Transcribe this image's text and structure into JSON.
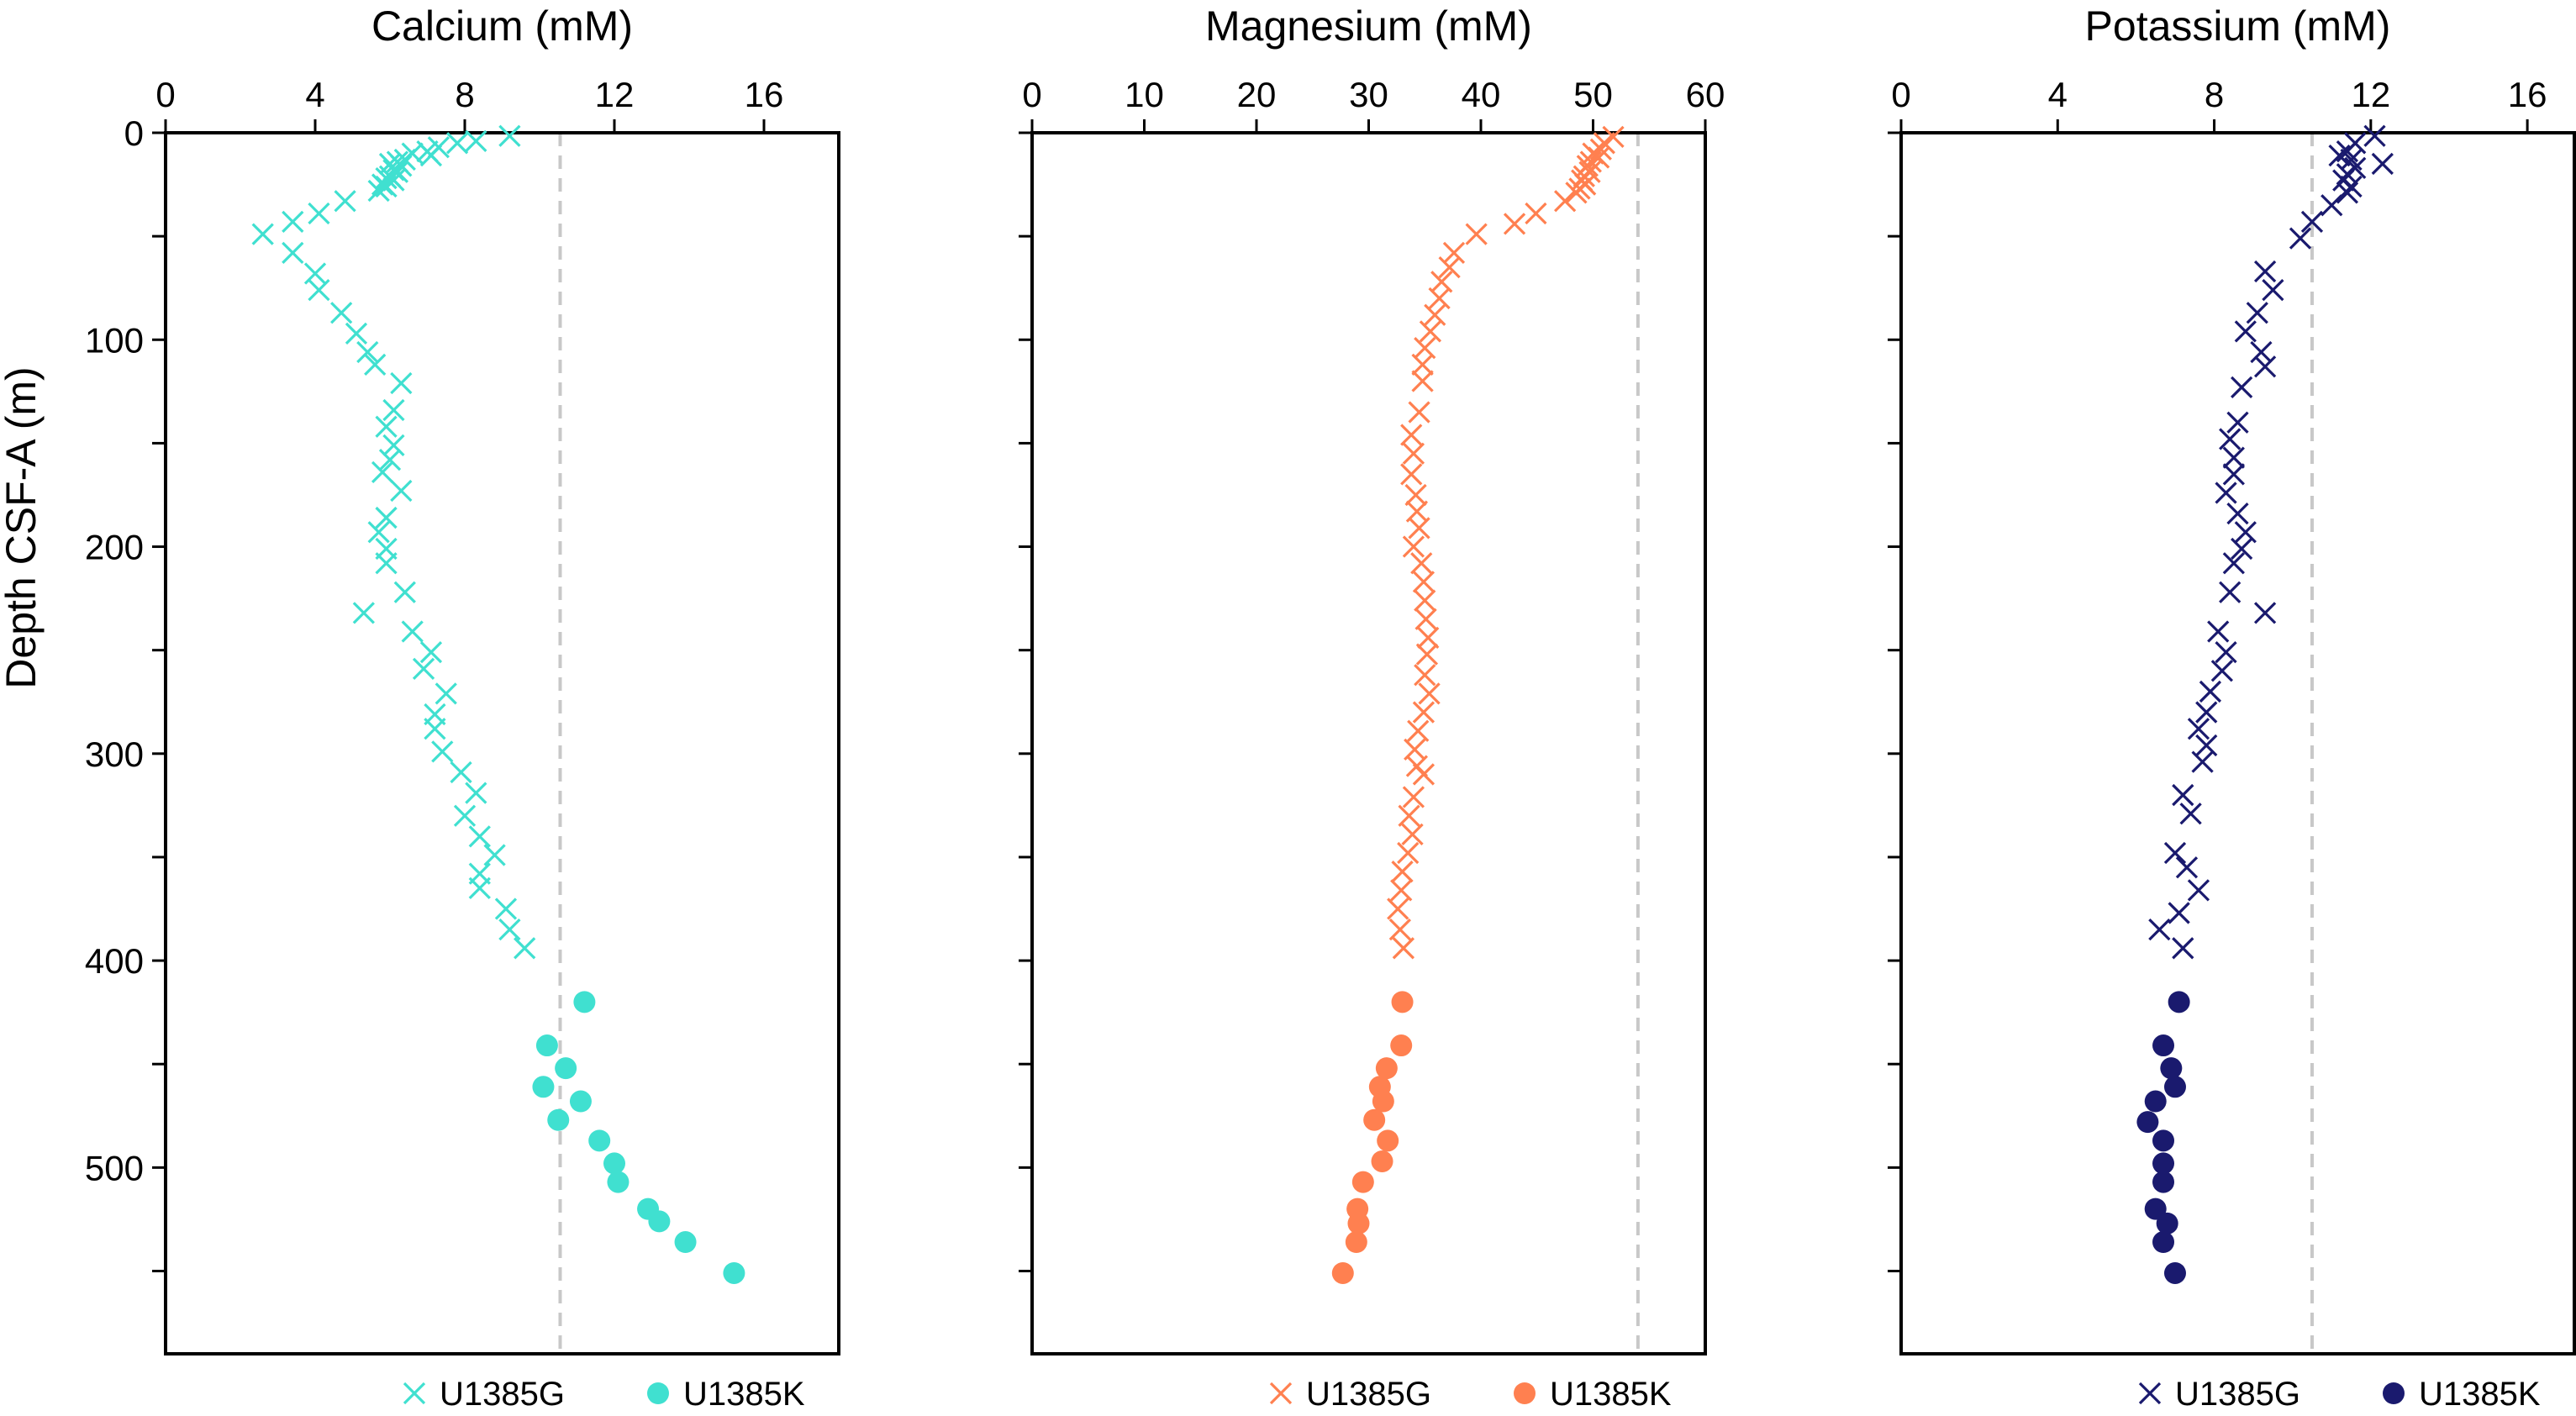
{
  "ylabel": "Depth CSF-A (m)",
  "legend_labels": [
    "U1385G",
    "U1385K"
  ],
  "chart_data": [
    {
      "type": "scatter",
      "title": "Calcium (mM)",
      "xlim": [
        0,
        18
      ],
      "xticks": [
        0,
        4,
        8,
        12,
        16
      ],
      "ylim": [
        0,
        590
      ],
      "yticks": [
        0,
        100,
        200,
        300,
        400,
        500
      ],
      "y_inverted": true,
      "color": "#40E0D0",
      "reference_line_x": 10.55,
      "series": [
        {
          "name": "U1385G",
          "marker": "x",
          "points": [
            [
              9.2,
              1.5
            ],
            [
              8.3,
              4
            ],
            [
              7.8,
              5
            ],
            [
              7.3,
              7
            ],
            [
              7.0,
              9
            ],
            [
              6.6,
              10
            ],
            [
              7.1,
              11
            ],
            [
              6.4,
              13
            ],
            [
              6.2,
              14
            ],
            [
              6.0,
              15
            ],
            [
              6.3,
              16
            ],
            [
              6.1,
              18
            ],
            [
              6.2,
              19
            ],
            [
              6.0,
              21
            ],
            [
              5.9,
              22
            ],
            [
              6.1,
              23
            ],
            [
              5.8,
              25
            ],
            [
              5.9,
              26
            ],
            [
              5.7,
              28
            ],
            [
              4.8,
              33
            ],
            [
              4.1,
              39
            ],
            [
              3.4,
              43
            ],
            [
              2.6,
              49
            ],
            [
              3.4,
              58
            ],
            [
              4.0,
              68
            ],
            [
              4.1,
              76
            ],
            [
              4.7,
              87
            ],
            [
              5.1,
              97
            ],
            [
              5.4,
              106
            ],
            [
              5.6,
              112
            ],
            [
              6.3,
              121
            ],
            [
              6.1,
              134
            ],
            [
              5.9,
              142
            ],
            [
              6.1,
              151
            ],
            [
              6.0,
              158
            ],
            [
              5.8,
              164
            ],
            [
              6.3,
              173
            ],
            [
              5.9,
              186
            ],
            [
              5.7,
              193
            ],
            [
              5.9,
              201
            ],
            [
              5.9,
              208
            ],
            [
              6.4,
              222
            ],
            [
              5.3,
              232
            ],
            [
              6.6,
              241
            ],
            [
              7.1,
              251
            ],
            [
              6.9,
              259
            ],
            [
              7.5,
              271
            ],
            [
              7.2,
              281
            ],
            [
              7.2,
              288
            ],
            [
              7.4,
              299
            ],
            [
              7.9,
              309
            ],
            [
              8.3,
              319
            ],
            [
              8.0,
              330
            ],
            [
              8.4,
              340
            ],
            [
              8.8,
              349
            ],
            [
              8.4,
              358
            ],
            [
              8.4,
              365
            ],
            [
              9.1,
              375
            ],
            [
              9.2,
              385
            ],
            [
              9.6,
              394
            ]
          ]
        },
        {
          "name": "U1385K",
          "marker": "circle",
          "points": [
            [
              11.2,
              420
            ],
            [
              10.2,
              441
            ],
            [
              10.7,
              452
            ],
            [
              10.1,
              461
            ],
            [
              11.1,
              468
            ],
            [
              10.5,
              477
            ],
            [
              11.6,
              487
            ],
            [
              12.0,
              498
            ],
            [
              12.1,
              507
            ],
            [
              12.9,
              520
            ],
            [
              13.2,
              526
            ],
            [
              13.9,
              536
            ],
            [
              15.2,
              551
            ]
          ]
        }
      ]
    },
    {
      "type": "scatter",
      "title": "Magnesium (mM)",
      "xlim": [
        0,
        60
      ],
      "xticks": [
        0,
        10,
        20,
        30,
        40,
        50,
        60
      ],
      "ylim": [
        0,
        590
      ],
      "yticks": [
        0,
        100,
        200,
        300,
        400,
        500
      ],
      "y_inverted": true,
      "color": "#FF8050",
      "reference_line_x": 54,
      "series": [
        {
          "name": "U1385G",
          "marker": "x",
          "points": [
            [
              51.8,
              2
            ],
            [
              51.0,
              5
            ],
            [
              50.7,
              8
            ],
            [
              50.0,
              10
            ],
            [
              50.5,
              12
            ],
            [
              49.8,
              14
            ],
            [
              49.5,
              16
            ],
            [
              49.7,
              19
            ],
            [
              49.2,
              21
            ],
            [
              49.0,
              23
            ],
            [
              49.3,
              25
            ],
            [
              48.8,
              27
            ],
            [
              48.5,
              29
            ],
            [
              47.5,
              33
            ],
            [
              44.9,
              39
            ],
            [
              43.0,
              44
            ],
            [
              39.6,
              49
            ],
            [
              37.6,
              58
            ],
            [
              37.2,
              65
            ],
            [
              36.5,
              72
            ],
            [
              36.3,
              80
            ],
            [
              35.9,
              88
            ],
            [
              35.5,
              96
            ],
            [
              35.0,
              104
            ],
            [
              34.8,
              112
            ],
            [
              34.8,
              120
            ],
            [
              34.5,
              135
            ],
            [
              33.8,
              146
            ],
            [
              34.0,
              155
            ],
            [
              33.8,
              165
            ],
            [
              34.2,
              175
            ],
            [
              34.3,
              183
            ],
            [
              34.5,
              191
            ],
            [
              34.0,
              200
            ],
            [
              34.7,
              208
            ],
            [
              34.9,
              217
            ],
            [
              35.0,
              226
            ],
            [
              35.1,
              235
            ],
            [
              35.3,
              244
            ],
            [
              35.2,
              252
            ],
            [
              35.0,
              262
            ],
            [
              35.4,
              271
            ],
            [
              34.9,
              280
            ],
            [
              34.4,
              289
            ],
            [
              34.1,
              298
            ],
            [
              34.3,
              306
            ],
            [
              34.9,
              310
            ],
            [
              34.0,
              321
            ],
            [
              33.6,
              330
            ],
            [
              33.9,
              339
            ],
            [
              33.5,
              348
            ],
            [
              33.0,
              357
            ],
            [
              32.9,
              366
            ],
            [
              32.6,
              375
            ],
            [
              32.8,
              385
            ],
            [
              33.1,
              394
            ]
          ]
        },
        {
          "name": "U1385K",
          "marker": "circle",
          "points": [
            [
              33.0,
              420
            ],
            [
              32.9,
              441
            ],
            [
              31.6,
              452
            ],
            [
              31.0,
              461
            ],
            [
              31.3,
              468
            ],
            [
              30.5,
              477
            ],
            [
              31.7,
              487
            ],
            [
              31.2,
              497
            ],
            [
              29.5,
              507
            ],
            [
              29.0,
              520
            ],
            [
              29.1,
              527
            ],
            [
              28.9,
              536
            ],
            [
              27.7,
              551
            ]
          ]
        }
      ]
    },
    {
      "type": "scatter",
      "title": "Potassium (mM)",
      "xlim": [
        0,
        17.2
      ],
      "xticks": [
        0,
        4,
        8,
        12,
        16
      ],
      "ylim": [
        0,
        590
      ],
      "yticks": [
        0,
        100,
        200,
        300,
        400,
        500
      ],
      "y_inverted": true,
      "color": "#1A1A6E",
      "reference_line_x": 10.5,
      "series": [
        {
          "name": "U1385G",
          "marker": "x",
          "points": [
            [
              12.1,
              1.5
            ],
            [
              11.6,
              5
            ],
            [
              11.4,
              9
            ],
            [
              11.2,
              11
            ],
            [
              11.5,
              13
            ],
            [
              12.3,
              15
            ],
            [
              11.6,
              17
            ],
            [
              11.4,
              20
            ],
            [
              11.3,
              23
            ],
            [
              11.5,
              26
            ],
            [
              11.4,
              29
            ],
            [
              11.0,
              35
            ],
            [
              10.5,
              43
            ],
            [
              10.2,
              51
            ],
            [
              9.3,
              67
            ],
            [
              9.5,
              76
            ],
            [
              9.1,
              87
            ],
            [
              8.8,
              96
            ],
            [
              9.2,
              106
            ],
            [
              9.3,
              113
            ],
            [
              8.7,
              123
            ],
            [
              8.6,
              140
            ],
            [
              8.4,
              148
            ],
            [
              8.5,
              157
            ],
            [
              8.5,
              165
            ],
            [
              8.3,
              174
            ],
            [
              8.6,
              184
            ],
            [
              8.8,
              193
            ],
            [
              8.7,
              201
            ],
            [
              8.5,
              208
            ],
            [
              8.4,
              222
            ],
            [
              9.3,
              232
            ],
            [
              8.1,
              241
            ],
            [
              8.3,
              251
            ],
            [
              8.2,
              260
            ],
            [
              7.9,
              270
            ],
            [
              7.8,
              280
            ],
            [
              7.6,
              288
            ],
            [
              7.8,
              296
            ],
            [
              7.7,
              304
            ],
            [
              7.2,
              320
            ],
            [
              7.4,
              329
            ],
            [
              7.0,
              348
            ],
            [
              7.3,
              355
            ],
            [
              7.6,
              366
            ],
            [
              7.1,
              377
            ],
            [
              6.6,
              385
            ],
            [
              7.2,
              394
            ]
          ]
        },
        {
          "name": "U1385K",
          "marker": "circle",
          "points": [
            [
              7.1,
              420
            ],
            [
              6.7,
              441
            ],
            [
              6.9,
              452
            ],
            [
              7.0,
              461
            ],
            [
              6.5,
              468
            ],
            [
              6.3,
              478
            ],
            [
              6.7,
              487
            ],
            [
              6.7,
              498
            ],
            [
              6.7,
              507
            ],
            [
              6.5,
              520
            ],
            [
              6.8,
              527
            ],
            [
              6.7,
              536
            ],
            [
              7.0,
              551
            ]
          ]
        }
      ]
    }
  ]
}
